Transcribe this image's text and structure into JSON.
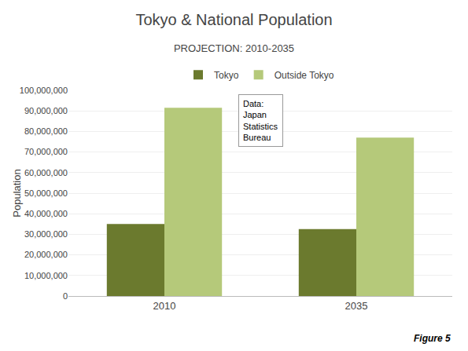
{
  "chart_data": {
    "type": "bar",
    "title": "Tokyo & National Population",
    "subtitle": "PROJECTION: 2010-2035",
    "categories": [
      "2010",
      "2035"
    ],
    "series": [
      {
        "name": "Tokyo",
        "color": "#6b7a2e",
        "values": [
          35000000,
          32500000
        ]
      },
      {
        "name": "Outside Tokyo",
        "color": "#b5c97a",
        "values": [
          91500000,
          77000000
        ]
      }
    ],
    "ylabel": "Population",
    "ylim": [
      0,
      100000000
    ],
    "yticks": [
      0,
      {
        "value": 10000000,
        "label": "10,000,000"
      },
      {
        "value": 20000000,
        "label": "20,000,000"
      },
      {
        "value": 30000000,
        "label": "30,000,000"
      },
      {
        "value": 40000000,
        "label": "40,000,000"
      },
      {
        "value": 50000000,
        "label": "50,000,000"
      },
      {
        "value": 60000000,
        "label": "60,000,000"
      },
      {
        "value": 70000000,
        "label": "70,000,000"
      },
      {
        "value": 80000000,
        "label": "80,000,000"
      },
      {
        "value": 90000000,
        "label": "90,000,000"
      },
      {
        "value": 100000000,
        "label": "100,000,000"
      }
    ],
    "annotations": [
      "Data:\nJapan\nStatistics\nBureau",
      "Figure 5"
    ],
    "grid": true,
    "legend": "top"
  }
}
